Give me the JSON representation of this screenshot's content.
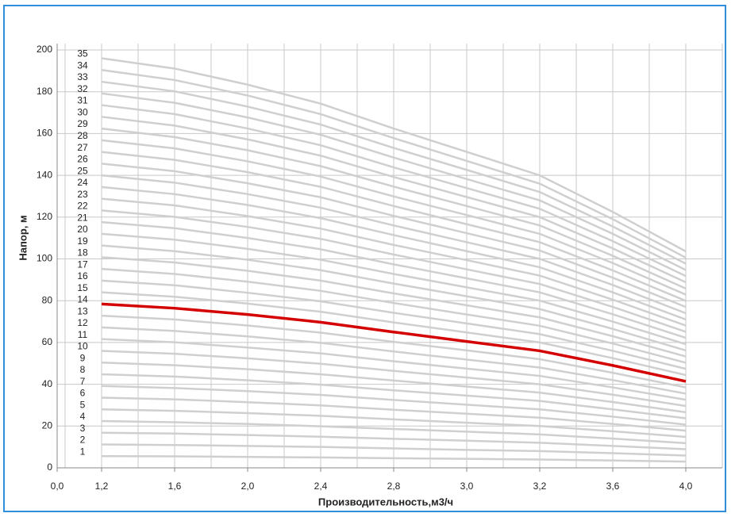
{
  "chart_data": {
    "type": "line",
    "xlabel": "Производительность,м3/ч",
    "ylabel": "Напор, м",
    "categories": [
      "0,0",
      "1,2",
      "1,6",
      "2,0",
      "2,4",
      "2,8",
      "3,0",
      "3,2",
      "3,6",
      "4,0"
    ],
    "ylim": [
      0,
      200
    ],
    "yticks": [
      0,
      20,
      40,
      60,
      80,
      100,
      120,
      140,
      160,
      180,
      200
    ],
    "grid": true,
    "series": [
      {
        "name": "1",
        "color": "#cfcfcf",
        "values": [
          null,
          5.6,
          5.5,
          5.2,
          5,
          4.6,
          4.3,
          4,
          3.5,
          3
        ]
      },
      {
        "name": "2",
        "color": "#cfcfcf",
        "values": [
          null,
          11.2,
          10.9,
          10.5,
          10,
          9.3,
          8.6,
          8,
          7,
          5.9
        ]
      },
      {
        "name": "3",
        "color": "#cfcfcf",
        "values": [
          null,
          16.8,
          16.4,
          15.7,
          14.9,
          13.9,
          13,
          12,
          10.5,
          8.9
        ]
      },
      {
        "name": "4",
        "color": "#cfcfcf",
        "values": [
          null,
          22.4,
          21.8,
          21,
          19.9,
          18.6,
          17.3,
          16,
          14,
          11.8
        ]
      },
      {
        "name": "5",
        "color": "#cfcfcf",
        "values": [
          null,
          28,
          27.3,
          26.2,
          24.9,
          23.2,
          21.6,
          20,
          17.5,
          14.8
        ]
      },
      {
        "name": "6",
        "color": "#cfcfcf",
        "values": [
          null,
          33.6,
          32.8,
          31.4,
          29.9,
          27.8,
          25.9,
          24,
          21,
          17.8
        ]
      },
      {
        "name": "7",
        "color": "#cfcfcf",
        "values": [
          null,
          39.2,
          38.2,
          36.7,
          34.9,
          32.5,
          30.2,
          28,
          24.5,
          20.7
        ]
      },
      {
        "name": "8",
        "color": "#cfcfcf",
        "values": [
          null,
          44.8,
          43.7,
          41.9,
          39.8,
          37.1,
          34.6,
          32,
          28,
          23.7
        ]
      },
      {
        "name": "9",
        "color": "#cfcfcf",
        "values": [
          null,
          50.4,
          49.1,
          47.2,
          44.8,
          41.8,
          38.9,
          36,
          31.5,
          26.6
        ]
      },
      {
        "name": "10",
        "color": "#cfcfcf",
        "values": [
          null,
          56,
          54.6,
          52.4,
          49.8,
          46.4,
          43.2,
          40,
          35,
          29.6
        ]
      },
      {
        "name": "11",
        "color": "#cfcfcf",
        "values": [
          null,
          61.6,
          60.1,
          57.6,
          54.8,
          51,
          47.5,
          44,
          38.5,
          32.6
        ]
      },
      {
        "name": "12",
        "color": "#cfcfcf",
        "values": [
          null,
          67.2,
          65.5,
          62.9,
          59.8,
          55.7,
          51.8,
          48,
          42,
          35.5
        ]
      },
      {
        "name": "13",
        "color": "#cfcfcf",
        "values": [
          null,
          72.8,
          71,
          68.1,
          64.7,
          60.3,
          56.2,
          52,
          45.5,
          38.5
        ]
      },
      {
        "name": "14",
        "color": "#d40000",
        "values": [
          null,
          78.4,
          76.4,
          73.4,
          69.7,
          65,
          60.5,
          56,
          49,
          41.4
        ]
      },
      {
        "name": "15",
        "color": "#cfcfcf",
        "values": [
          null,
          84,
          81.9,
          78.6,
          74.7,
          69.6,
          64.8,
          60,
          52.5,
          44.4
        ]
      },
      {
        "name": "16",
        "color": "#cfcfcf",
        "values": [
          null,
          89.6,
          87.4,
          83.8,
          79.7,
          74.2,
          69.1,
          64,
          56,
          47.4
        ]
      },
      {
        "name": "17",
        "color": "#cfcfcf",
        "values": [
          null,
          95.2,
          92.8,
          89.1,
          84.7,
          78.9,
          73.4,
          68,
          59.5,
          50.3
        ]
      },
      {
        "name": "18",
        "color": "#cfcfcf",
        "values": [
          null,
          100.8,
          98.3,
          94.3,
          89.6,
          83.5,
          77.8,
          72,
          63,
          53.3
        ]
      },
      {
        "name": "19",
        "color": "#cfcfcf",
        "values": [
          null,
          106.4,
          103.7,
          99.6,
          94.6,
          88.2,
          82.1,
          76,
          66.5,
          56.2
        ]
      },
      {
        "name": "20",
        "color": "#cfcfcf",
        "values": [
          null,
          112,
          109.2,
          104.8,
          99.6,
          92.8,
          86.4,
          80,
          70,
          59.2
        ]
      },
      {
        "name": "21",
        "color": "#cfcfcf",
        "values": [
          null,
          117.6,
          114.7,
          110,
          104.6,
          97.4,
          90.7,
          84,
          73.5,
          62.2
        ]
      },
      {
        "name": "22",
        "color": "#cfcfcf",
        "values": [
          null,
          123.2,
          120.1,
          115.3,
          109.6,
          102.1,
          95,
          88,
          77,
          65.1
        ]
      },
      {
        "name": "23",
        "color": "#cfcfcf",
        "values": [
          null,
          128.8,
          125.6,
          120.5,
          114.5,
          106.7,
          99.4,
          92,
          80.5,
          68.1
        ]
      },
      {
        "name": "24",
        "color": "#cfcfcf",
        "values": [
          null,
          134.4,
          131,
          125.8,
          119.5,
          111.4,
          103.7,
          96,
          84,
          71
        ]
      },
      {
        "name": "25",
        "color": "#cfcfcf",
        "values": [
          null,
          140,
          136.5,
          131,
          124.5,
          116,
          108,
          100,
          87.5,
          74
        ]
      },
      {
        "name": "26",
        "color": "#cfcfcf",
        "values": [
          null,
          145.6,
          142,
          136.2,
          129.5,
          120.6,
          112.3,
          104,
          91,
          77
        ]
      },
      {
        "name": "27",
        "color": "#cfcfcf",
        "values": [
          null,
          151.2,
          147.4,
          141.5,
          134.5,
          125.3,
          116.6,
          108,
          94.5,
          79.9
        ]
      },
      {
        "name": "28",
        "color": "#cfcfcf",
        "values": [
          null,
          156.8,
          152.9,
          146.7,
          139.4,
          129.9,
          121,
          112,
          98,
          82.9
        ]
      },
      {
        "name": "29",
        "color": "#cfcfcf",
        "values": [
          null,
          162.4,
          158.3,
          152,
          144.4,
          134.6,
          125.3,
          116,
          101.5,
          85.8
        ]
      },
      {
        "name": "30",
        "color": "#cfcfcf",
        "values": [
          null,
          168,
          163.8,
          157.2,
          149.4,
          139.2,
          129.6,
          120,
          105,
          88.8
        ]
      },
      {
        "name": "31",
        "color": "#cfcfcf",
        "values": [
          null,
          173.6,
          169.3,
          162.4,
          154.4,
          143.8,
          133.9,
          124,
          108.5,
          91.8
        ]
      },
      {
        "name": "32",
        "color": "#cfcfcf",
        "values": [
          null,
          179.2,
          174.7,
          167.7,
          159.4,
          148.5,
          138.2,
          128,
          112,
          94.7
        ]
      },
      {
        "name": "33",
        "color": "#cfcfcf",
        "values": [
          null,
          184.8,
          180.2,
          172.9,
          164.3,
          153.1,
          142.6,
          132,
          115.5,
          97.7
        ]
      },
      {
        "name": "34",
        "color": "#cfcfcf",
        "values": [
          null,
          190.4,
          185.6,
          178.2,
          169.3,
          157.8,
          146.9,
          136,
          119,
          100.6
        ]
      },
      {
        "name": "35",
        "color": "#cfcfcf",
        "values": [
          null,
          196,
          191.1,
          183.4,
          174.3,
          162.4,
          151.2,
          140,
          122.5,
          103.6
        ]
      }
    ]
  }
}
